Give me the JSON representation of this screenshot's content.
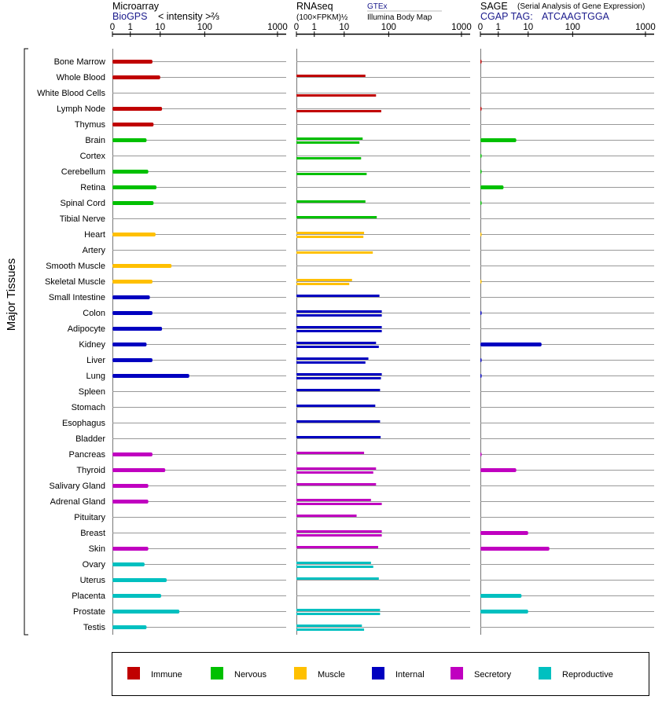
{
  "chart_data": {
    "type": "bar",
    "y_axis_label": "Major Tissues",
    "tissues": [
      "Bone Marrow",
      "Whole Blood",
      "White Blood Cells",
      "Lymph Node",
      "Thymus",
      "Brain",
      "Cortex",
      "Cerebellum",
      "Retina",
      "Spinal Cord",
      "Tibial Nerve",
      "Heart",
      "Artery",
      "Smooth Muscle",
      "Skeletal Muscle",
      "Small Intestine",
      "Colon",
      "Adipocyte",
      "Kidney",
      "Liver",
      "Lung",
      "Spleen",
      "Stomach",
      "Esophagus",
      "Bladder",
      "Pancreas",
      "Thyroid",
      "Salivary Gland",
      "Adrenal Gland",
      "Pituitary",
      "Breast",
      "Skin",
      "Ovary",
      "Uterus",
      "Placenta",
      "Prostate",
      "Testis"
    ],
    "groups": [
      {
        "name": "Immune",
        "color": "#c00000",
        "count": 5
      },
      {
        "name": "Nervous",
        "color": "#00c000",
        "count": 6
      },
      {
        "name": "Muscle",
        "color": "#ffc000",
        "count": 4
      },
      {
        "name": "Internal",
        "color": "#0000c0",
        "count": 10
      },
      {
        "name": "Secretory",
        "color": "#c000c0",
        "count": 7
      },
      {
        "name": "Reproductive",
        "color": "#00c0c0",
        "count": 5
      }
    ],
    "panels": [
      {
        "id": "microarray",
        "title": "Microarray",
        "source": "BioGPS",
        "scale_note": "< intensity >⅔",
        "ticks": [
          "0",
          "1",
          "10",
          "100",
          "1000"
        ],
        "xlim": [
          0,
          1000
        ],
        "values": [
          5.5,
          10,
          null,
          11,
          6,
          3.5,
          null,
          4,
          7.5,
          6,
          null,
          7,
          null,
          18,
          5.5,
          4.5,
          5.5,
          11,
          3.5,
          5.5,
          45,
          null,
          null,
          null,
          null,
          5.5,
          13,
          4,
          4,
          null,
          null,
          4,
          3,
          14,
          10.5,
          27,
          3.5
        ]
      },
      {
        "id": "rnaseq",
        "title": "RNAseq",
        "scale_note": "(100×FPKM)½",
        "sources": [
          "GTEx",
          "Illumina Body Map"
        ],
        "ticks": [
          "0",
          "1",
          "10",
          "100",
          "1000"
        ],
        "xlim": [
          0,
          1000
        ],
        "values": [
          [
            null,
            null
          ],
          [
            30,
            null
          ],
          [
            null,
            52
          ],
          [
            null,
            68
          ],
          [
            null,
            null
          ],
          [
            26,
            22
          ],
          [
            null,
            24
          ],
          [
            null,
            32
          ],
          [
            null,
            null
          ],
          [
            30,
            null
          ],
          [
            54,
            null
          ],
          [
            28,
            27
          ],
          [
            null,
            44
          ],
          [
            null,
            null
          ],
          [
            15,
            13
          ],
          [
            62,
            null
          ],
          [
            70,
            70
          ],
          [
            70,
            70
          ],
          [
            52,
            60
          ],
          [
            35,
            30
          ],
          [
            70,
            67
          ],
          [
            64,
            null
          ],
          [
            50,
            null
          ],
          [
            64,
            null
          ],
          [
            66,
            null
          ],
          [
            28,
            null
          ],
          [
            52,
            45
          ],
          [
            52,
            null
          ],
          [
            40,
            70
          ],
          [
            19,
            null
          ],
          [
            70,
            70
          ],
          [
            58,
            null
          ],
          [
            40,
            45
          ],
          [
            60,
            null
          ],
          [
            null,
            null
          ],
          [
            64,
            64
          ],
          [
            25,
            28
          ]
        ]
      },
      {
        "id": "sage",
        "title": "SAGE",
        "scale_note": "(Serial Analysis of Gene Expression)",
        "tag_label": "CGAP TAG:",
        "tag": "ATCAAGTGGA",
        "ticks": [
          "0",
          "1",
          "10",
          "100",
          "1000"
        ],
        "xlim": [
          0,
          1000
        ],
        "values": [
          0.05,
          null,
          null,
          0.05,
          null,
          4,
          0.02,
          0.02,
          1.5,
          0.02,
          null,
          0.01,
          null,
          null,
          0.01,
          null,
          0.05,
          null,
          20,
          0.05,
          0.05,
          null,
          null,
          null,
          null,
          0.05,
          4,
          null,
          null,
          null,
          10,
          30,
          null,
          null,
          6,
          10,
          null
        ]
      }
    ],
    "legend_position": "bottom"
  }
}
